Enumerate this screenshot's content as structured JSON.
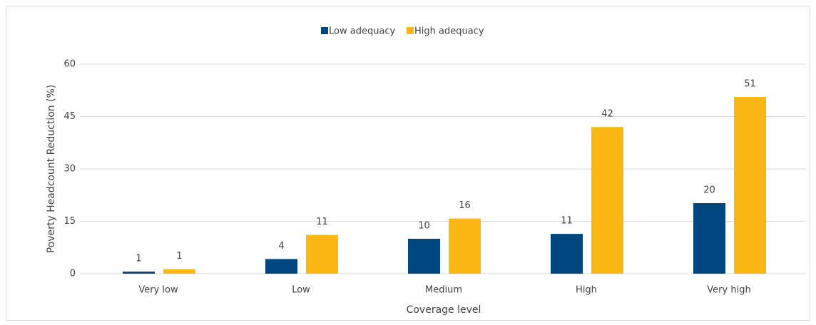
{
  "chart_data": {
    "type": "bar",
    "categories": [
      "Very low",
      "Low",
      "Medium",
      "High",
      "Very high"
    ],
    "series": [
      {
        "name": "Low adequacy",
        "color": "#00467f",
        "values": [
          0.6,
          4.2,
          10,
          11.4,
          20.2
        ],
        "value_labels": [
          "1",
          "4",
          "10",
          "11",
          "20"
        ]
      },
      {
        "name": "High adequacy",
        "color": "#fdb714",
        "values": [
          1.3,
          11.1,
          15.8,
          42,
          50.6
        ],
        "value_labels": [
          "1",
          "11",
          "16",
          "42",
          "51"
        ]
      }
    ],
    "ylim": [
      0,
      60
    ],
    "yticks": [
      0,
      15,
      30,
      45,
      60
    ],
    "grid": true,
    "y_label": "Poverty Headcount Reduction (%)",
    "x_label": "Coverage level",
    "legend": "top"
  }
}
